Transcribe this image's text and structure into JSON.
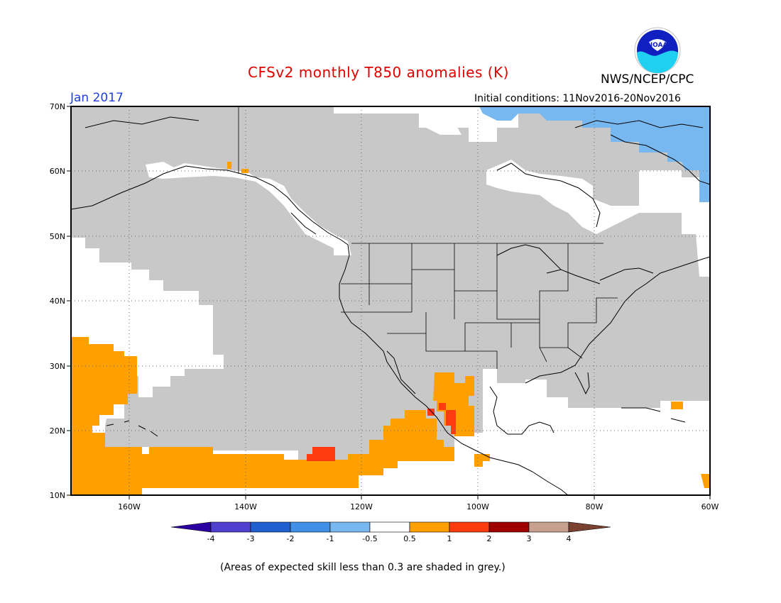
{
  "header": {
    "title": "CFSv2 monthly T850 anomalies (K)",
    "agency": "NWS/NCEP/CPC",
    "valid_month": "Jan 2017",
    "initial_conditions": "Initial conditions: 11Nov2016-20Nov2016",
    "logo_text": "NOAA"
  },
  "map": {
    "lat_labels": [
      "70N",
      "60N",
      "50N",
      "40N",
      "30N",
      "20N",
      "10N"
    ],
    "lon_labels": [
      "160W",
      "140W",
      "120W",
      "100W",
      "80W",
      "60W"
    ]
  },
  "legend": {
    "tick_labels": [
      "-4",
      "-3",
      "-2",
      "-1",
      "-0.5",
      "0.5",
      "1",
      "2",
      "3",
      "4"
    ],
    "colors": [
      "#2a00a0",
      "#5040d0",
      "#2060d0",
      "#4090e8",
      "#78b8f0",
      "#ffffff",
      "#ffa000",
      "#ff3c10",
      "#a00000",
      "#c8a090",
      "#7a4030"
    ],
    "skill_grey": "#c8c8c8"
  },
  "footnote": "(Areas of expected skill less than 0.3 are shaded in grey.)"
}
